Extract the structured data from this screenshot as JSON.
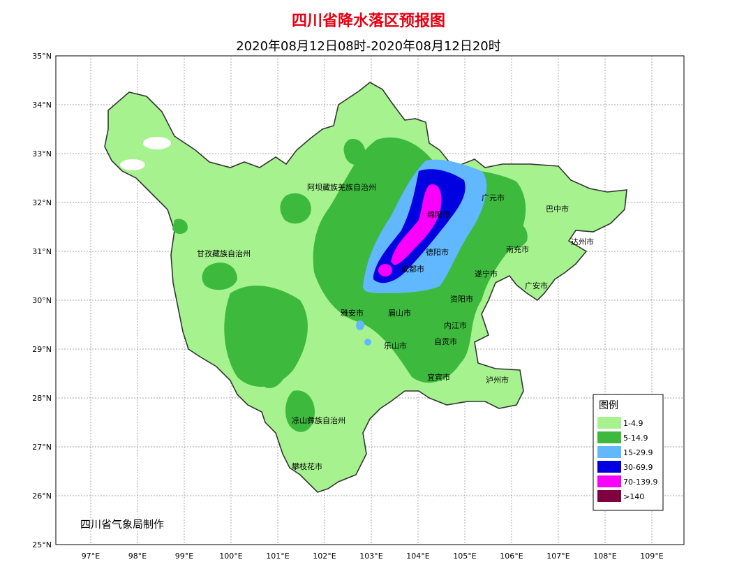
{
  "title": "四川省降水落区预报图",
  "subtitle": "2020年08月12日08时-2020年08月12日20时",
  "credit": "四川省气象局制作",
  "lat_labels": [
    "35°N",
    "34°N",
    "33°N",
    "32°N",
    "31°N",
    "30°N",
    "29°N",
    "28°N",
    "27°N",
    "26°N",
    "25°N"
  ],
  "lon_labels": [
    "97°E",
    "98°E",
    "99°E",
    "100°E",
    "101°E",
    "102°E",
    "103°E",
    "104°E",
    "105°E",
    "106°E",
    "107°E",
    "108°E",
    "109°E"
  ],
  "cities": [
    {
      "name": "阿坝藏族羌族自治州"
    },
    {
      "name": "广元市"
    },
    {
      "name": "巴中市"
    },
    {
      "name": "绵阳市"
    },
    {
      "name": "达州市"
    },
    {
      "name": "甘孜藏族自治州"
    },
    {
      "name": "德阳市"
    },
    {
      "name": "南充市"
    },
    {
      "name": "成都市"
    },
    {
      "name": "遂宁市"
    },
    {
      "name": "广安市"
    },
    {
      "name": "资阳市"
    },
    {
      "name": "雅安市"
    },
    {
      "name": "眉山市"
    },
    {
      "name": "内江市"
    },
    {
      "name": "自贡市"
    },
    {
      "name": "乐山市"
    },
    {
      "name": "宜宾市"
    },
    {
      "name": "泸州市"
    },
    {
      "name": "凉山彝族自治州"
    },
    {
      "name": "攀枝花市"
    }
  ],
  "legend": {
    "title": "图例",
    "items": [
      {
        "label": "1-4.9",
        "color": "#a6f28f"
      },
      {
        "label": "5-14.9",
        "color": "#3dba3d"
      },
      {
        "label": "15-29.9",
        "color": "#61b8ff"
      },
      {
        "label": "30-69.9",
        "color": "#0000e1"
      },
      {
        "label": "70-139.9",
        "color": "#fa00fa"
      },
      {
        "label": ">140",
        "color": "#800040"
      }
    ]
  }
}
